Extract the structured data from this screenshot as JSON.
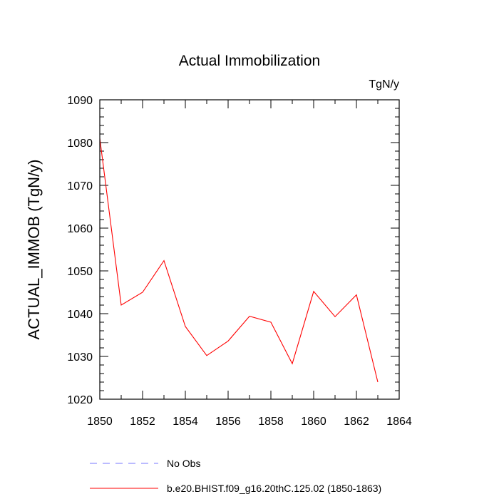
{
  "chart_data": {
    "type": "line",
    "title": "Actual Immobilization",
    "units_label": "TgN/y",
    "xlabel": "",
    "ylabel": "ACTUAL_IMMOB  (TgN/y)",
    "xlim": [
      1850,
      1864
    ],
    "ylim": [
      1020,
      1090
    ],
    "x_ticks": [
      1850,
      1852,
      1854,
      1856,
      1858,
      1860,
      1862,
      1864
    ],
    "y_ticks": [
      1020,
      1030,
      1040,
      1050,
      1060,
      1070,
      1080,
      1090
    ],
    "series": [
      {
        "name": "b.e20.BHIST.f09_g16.20thC.125.02 (1850-1863)",
        "color": "#ff0000",
        "style": "solid",
        "x": [
          1850,
          1851,
          1852,
          1853,
          1854,
          1855,
          1856,
          1857,
          1858,
          1859,
          1860,
          1861,
          1862,
          1863
        ],
        "values": [
          1081,
          1042,
          1045,
          1052.4,
          1037,
          1030.2,
          1033.6,
          1039.4,
          1038,
          1028.3,
          1045.2,
          1039.3,
          1044.4,
          1024
        ]
      }
    ],
    "legend": [
      {
        "label": "No Obs",
        "color": "#7777ff",
        "style": "dashed"
      },
      {
        "label": "b.e20.BHIST.f09_g16.20thC.125.02 (1850-1863)",
        "color": "#ff0000",
        "style": "solid"
      }
    ],
    "legend_position": "bottom"
  }
}
